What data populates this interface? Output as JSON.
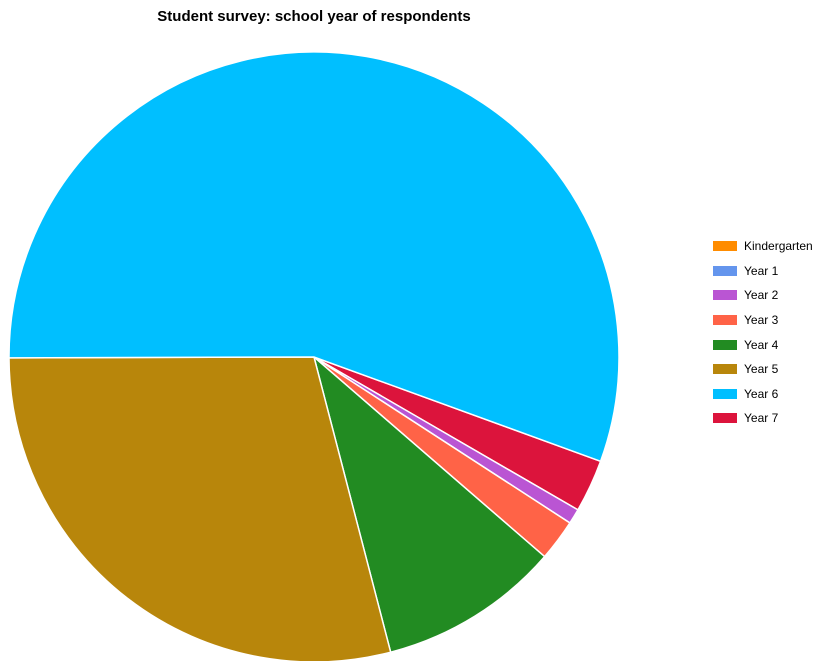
{
  "chart_data": {
    "type": "pie",
    "title": "Student survey: school year of respondents",
    "categories": [
      "Kindergarten",
      "Year 1",
      "Year 2",
      "Year 3",
      "Year 4",
      "Year 5",
      "Year 6",
      "Year 7"
    ],
    "values": [
      0,
      0,
      0.8,
      2.2,
      9.6,
      29.0,
      55.6,
      2.8
    ],
    "colors": [
      "#FF8C00",
      "#6495ED",
      "#BA55D3",
      "#FF6347",
      "#228B22",
      "#B8860B",
      "#00BFFF",
      "#DC143C"
    ],
    "legend": "right"
  }
}
